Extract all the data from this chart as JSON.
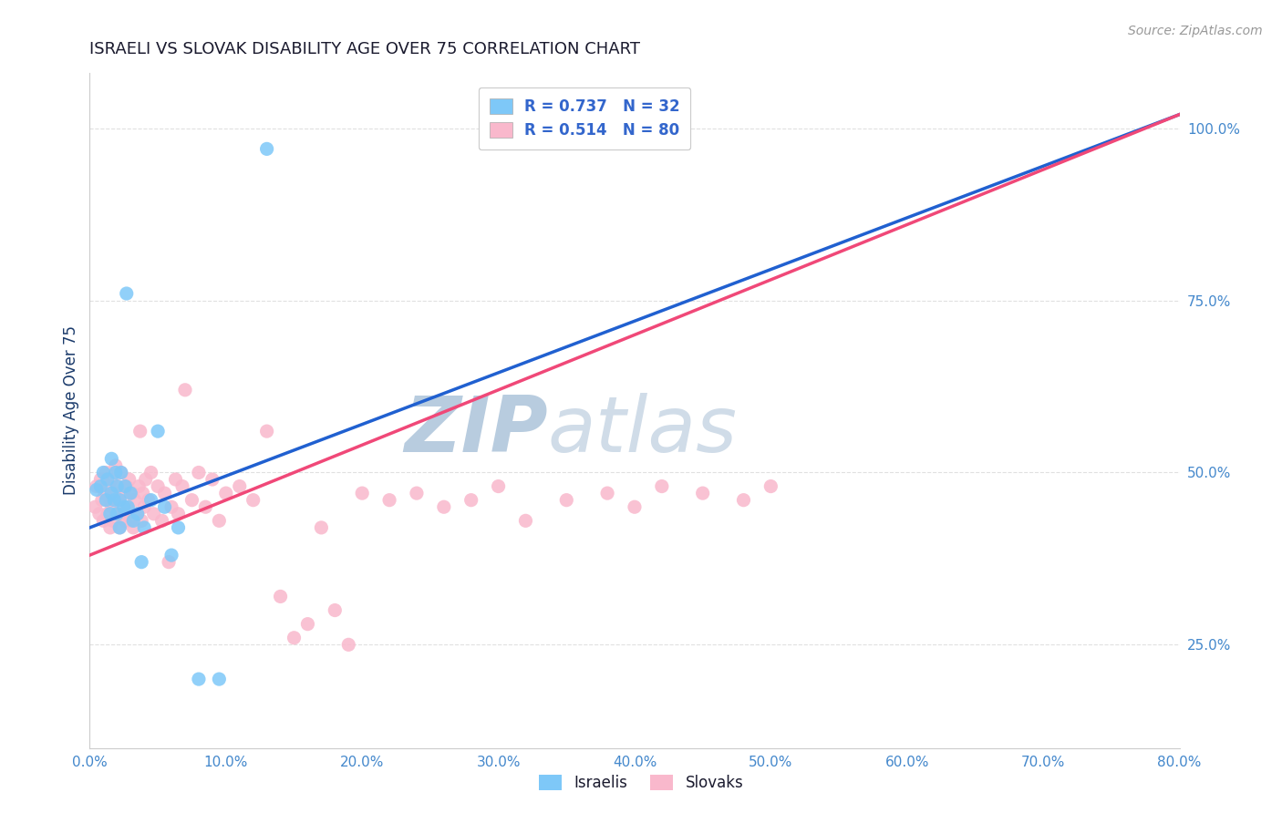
{
  "title": "ISRAELI VS SLOVAK DISABILITY AGE OVER 75 CORRELATION CHART",
  "source_text": "Source: ZipAtlas.com",
  "ylabel": "Disability Age Over 75",
  "xlim": [
    0.0,
    0.8
  ],
  "ylim": [
    0.1,
    1.08
  ],
  "xtick_labels": [
    "0.0%",
    "",
    "10.0%",
    "",
    "20.0%",
    "",
    "30.0%",
    "",
    "40.0%",
    "",
    "50.0%",
    "",
    "60.0%",
    "",
    "70.0%",
    "",
    "80.0%"
  ],
  "xtick_values": [
    0.0,
    0.05,
    0.1,
    0.15,
    0.2,
    0.25,
    0.3,
    0.35,
    0.4,
    0.45,
    0.5,
    0.55,
    0.6,
    0.65,
    0.7,
    0.75,
    0.8
  ],
  "ytick_labels": [
    "25.0%",
    "50.0%",
    "75.0%",
    "100.0%"
  ],
  "ytick_values": [
    0.25,
    0.5,
    0.75,
    1.0
  ],
  "israeli_R": 0.737,
  "israeli_N": 32,
  "slovak_R": 0.514,
  "slovak_N": 80,
  "israeli_color": "#7ec8f8",
  "slovak_color": "#f9b8cc",
  "israeli_line_color": "#2060d0",
  "slovak_line_color": "#f04878",
  "title_color": "#1a1a2e",
  "axis_label_color": "#1a3a6b",
  "tick_label_color": "#4488cc",
  "legend_r_color": "#3366cc",
  "watermark_color": "#dce8f5",
  "background_color": "#ffffff",
  "grid_color": "#e0e0e0",
  "israeli_points_x": [
    0.005,
    0.008,
    0.01,
    0.012,
    0.013,
    0.015,
    0.016,
    0.016,
    0.018,
    0.019,
    0.02,
    0.02,
    0.022,
    0.022,
    0.023,
    0.025,
    0.026,
    0.027,
    0.028,
    0.03,
    0.032,
    0.035,
    0.038,
    0.04,
    0.045,
    0.05,
    0.055,
    0.06,
    0.065,
    0.08,
    0.095,
    0.13
  ],
  "israeli_points_y": [
    0.475,
    0.48,
    0.5,
    0.46,
    0.49,
    0.44,
    0.47,
    0.52,
    0.46,
    0.5,
    0.44,
    0.48,
    0.42,
    0.46,
    0.5,
    0.45,
    0.48,
    0.76,
    0.45,
    0.47,
    0.43,
    0.44,
    0.37,
    0.42,
    0.46,
    0.56,
    0.45,
    0.38,
    0.42,
    0.2,
    0.2,
    0.97
  ],
  "slovak_points_x": [
    0.004,
    0.005,
    0.007,
    0.008,
    0.009,
    0.01,
    0.011,
    0.012,
    0.013,
    0.014,
    0.015,
    0.015,
    0.016,
    0.016,
    0.017,
    0.018,
    0.019,
    0.02,
    0.021,
    0.022,
    0.022,
    0.023,
    0.024,
    0.025,
    0.026,
    0.027,
    0.028,
    0.029,
    0.03,
    0.031,
    0.032,
    0.033,
    0.035,
    0.036,
    0.037,
    0.038,
    0.039,
    0.04,
    0.041,
    0.043,
    0.045,
    0.047,
    0.05,
    0.053,
    0.055,
    0.058,
    0.06,
    0.063,
    0.065,
    0.068,
    0.07,
    0.075,
    0.08,
    0.085,
    0.09,
    0.095,
    0.1,
    0.11,
    0.12,
    0.13,
    0.14,
    0.15,
    0.16,
    0.17,
    0.18,
    0.19,
    0.2,
    0.22,
    0.24,
    0.26,
    0.28,
    0.3,
    0.32,
    0.35,
    0.38,
    0.4,
    0.42,
    0.45,
    0.48,
    0.5
  ],
  "slovak_points_y": [
    0.45,
    0.48,
    0.44,
    0.49,
    0.46,
    0.43,
    0.47,
    0.5,
    0.44,
    0.48,
    0.42,
    0.46,
    0.45,
    0.49,
    0.43,
    0.47,
    0.51,
    0.44,
    0.48,
    0.42,
    0.46,
    0.5,
    0.44,
    0.47,
    0.43,
    0.48,
    0.45,
    0.49,
    0.43,
    0.47,
    0.42,
    0.46,
    0.44,
    0.48,
    0.56,
    0.43,
    0.47,
    0.45,
    0.49,
    0.46,
    0.5,
    0.44,
    0.48,
    0.43,
    0.47,
    0.37,
    0.45,
    0.49,
    0.44,
    0.48,
    0.62,
    0.46,
    0.5,
    0.45,
    0.49,
    0.43,
    0.47,
    0.48,
    0.46,
    0.56,
    0.32,
    0.26,
    0.28,
    0.42,
    0.3,
    0.25,
    0.47,
    0.46,
    0.47,
    0.45,
    0.46,
    0.48,
    0.43,
    0.46,
    0.47,
    0.45,
    0.48,
    0.47,
    0.46,
    0.48
  ],
  "israeli_line_x0": 0.0,
  "israeli_line_y0": 0.42,
  "israeli_line_x1": 0.8,
  "israeli_line_y1": 1.02,
  "slovak_line_x0": 0.0,
  "slovak_line_y0": 0.38,
  "slovak_line_x1": 0.8,
  "slovak_line_y1": 1.02
}
